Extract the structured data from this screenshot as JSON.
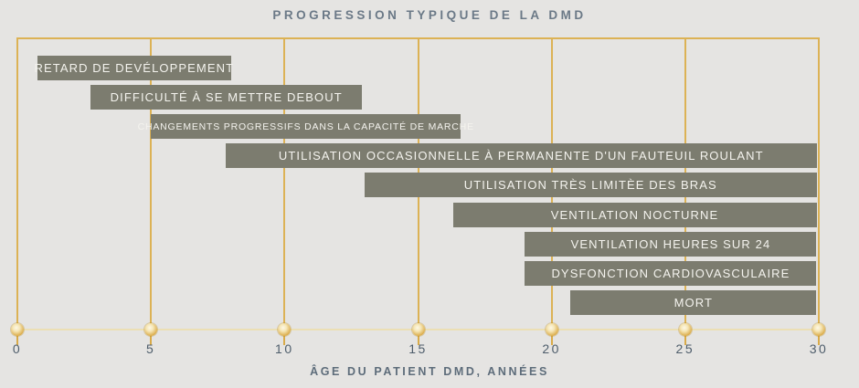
{
  "title": "PROGRESSION TYPIQUE DE LA DMD",
  "colors": {
    "background": "#e5e4e2",
    "bar_fill": "#7c7c6f",
    "bar_text": "#f4f3ee",
    "grid_gold": "#dcb255",
    "baseline_pale_gold": "#ecdfb4",
    "marker_gold": "#d9ab49",
    "title_text": "#6b7987",
    "axis_text": "#4e5d6b"
  },
  "chart_data": {
    "type": "bar",
    "orientation": "horizontal-range",
    "title": "PROGRESSION TYPIQUE DE LA DMD",
    "xlabel": "ÂGE DU PATIENT DMD, ANNÉES",
    "ylabel": "",
    "xlim": [
      0,
      30
    ],
    "xticks": [
      0,
      5,
      10,
      15,
      20,
      25,
      30
    ],
    "grid": "vertical gold gridlines at each tick, gold circular markers on baseline",
    "legend": false,
    "bars": [
      {
        "label": "RETARD DE DEVÉLOPPEMENT",
        "start": 0.75,
        "end": 8
      },
      {
        "label": "DIFFICULTÉ À SE METTRE DEBOUT",
        "start": 2.75,
        "end": 12.9
      },
      {
        "label": "CHANGEMENTS PROGRESSIFS DANS LA CAPACITÉ DE MARCHE",
        "start": 5,
        "end": 16.6,
        "small_text": true
      },
      {
        "label": "UTILISATION OCCASIONNELLE À PERMANENTE D'UN FAUTEUIL ROULANT",
        "start": 7.8,
        "end": 30
      },
      {
        "label": "UTILISATION TRÈS LIMITÈE DES BRAS",
        "start": 13,
        "end": 30
      },
      {
        "label": "VENTILATION NOCTURNE",
        "start": 16.3,
        "end": 30
      },
      {
        "label": "VENTILATION HEURES SUR 24",
        "start": 19,
        "end": 30
      },
      {
        "label": "DYSFONCTION CARDIOVASCULAIRE",
        "start": 19,
        "end": 30
      },
      {
        "label": "MORT",
        "start": 20.7,
        "end": 30
      }
    ]
  }
}
